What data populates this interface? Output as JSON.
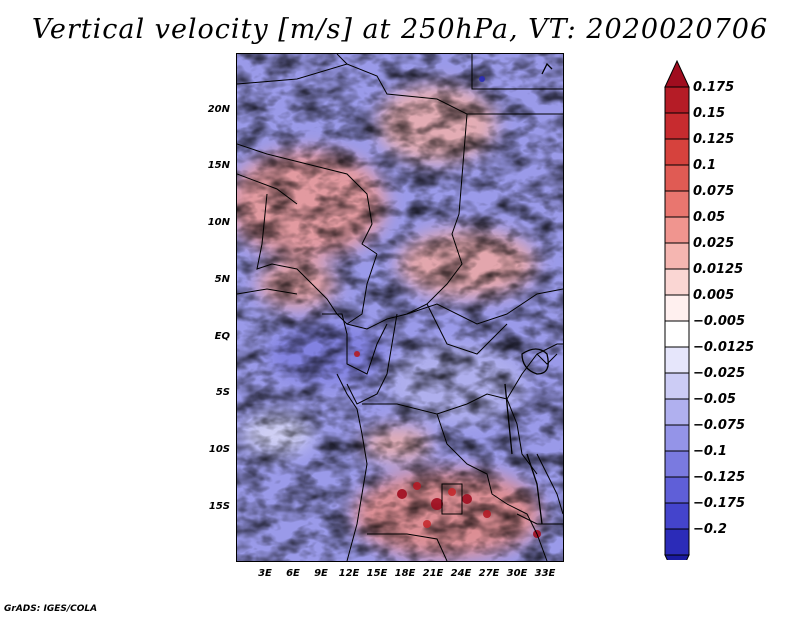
{
  "title": "Vertical velocity [m/s] at 250hPa, VT: 2020020706",
  "credit": "GrADS: IGES/COLA",
  "map": {
    "lat_ticks": [
      "20N",
      "15N",
      "10N",
      "5N",
      "EQ",
      "5S",
      "10S",
      "15S"
    ],
    "lon_ticks": [
      "3E",
      "6E",
      "9E",
      "12E",
      "15E",
      "18E",
      "21E",
      "24E",
      "27E",
      "30E",
      "33E"
    ]
  },
  "colorbar": {
    "labels": [
      "0.175",
      "0.15",
      "0.125",
      "0.1",
      "0.075",
      "0.05",
      "0.025",
      "0.0125",
      "0.005",
      "−0.005",
      "−0.0125",
      "−0.025",
      "−0.05",
      "−0.075",
      "−0.1",
      "−0.125",
      "−0.175",
      "−0.2"
    ],
    "colors": [
      "#a00d1f",
      "#b51c26",
      "#c72b2f",
      "#d6423d",
      "#e05b54",
      "#e9766f",
      "#f0958f",
      "#f5b6b1",
      "#fad6d3",
      "#fff0ef",
      "#ffffff",
      "#e6e6fb",
      "#ccccf5",
      "#b0b0ef",
      "#9494e8",
      "#7a7ae0",
      "#5f5fd8",
      "#4444cc",
      "#2b2bb8",
      "#1a1aa0"
    ]
  }
}
